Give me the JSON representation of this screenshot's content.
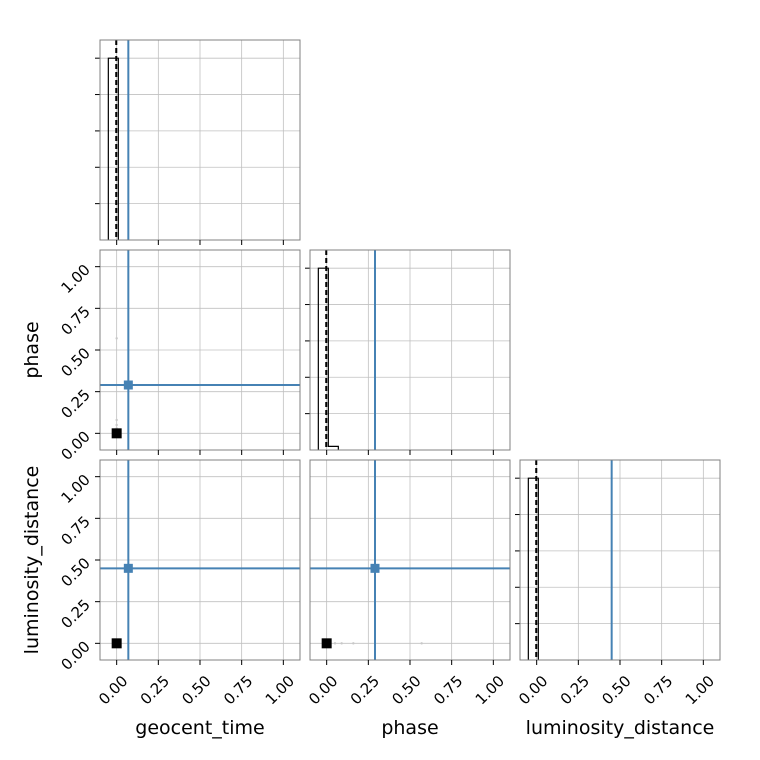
{
  "chart_data": {
    "type": "corner",
    "parameters": [
      "geocent_time",
      "phase",
      "luminosity_distance"
    ],
    "xlabels": [
      "geocent_time",
      "phase",
      "luminosity_distance"
    ],
    "ylabels": [
      "",
      "phase",
      "luminosity_distance"
    ],
    "xlim": [
      -0.1,
      1.1
    ],
    "ylim": [
      -0.1,
      1.1
    ],
    "ticks": [
      0.0,
      0.25,
      0.5,
      0.75,
      1.0
    ],
    "tick_labels": [
      "0.00",
      "0.25",
      "0.50",
      "0.75",
      "1.00"
    ],
    "grid": true,
    "truths": [
      0.07,
      0.29,
      0.45
    ],
    "colors": {
      "truth": "#4682b4",
      "hist": "#000000",
      "quantile": "#000000",
      "grid": "#c0c0c0",
      "frame": "#808080",
      "sample": "#000000"
    },
    "histograms": [
      {
        "param": "geocent_time",
        "edges": [
          -0.05,
          0.01
        ],
        "counts": [
          1.0
        ],
        "quantiles": [
          -0.005,
          0.0
        ]
      },
      {
        "param": "phase",
        "edges": [
          -0.05,
          0.01,
          0.07
        ],
        "counts": [
          1.0,
          0.02
        ],
        "quantiles": [
          -0.005,
          0.0
        ]
      },
      {
        "param": "luminosity_distance",
        "edges": [
          -0.05,
          0.01
        ],
        "counts": [
          1.0
        ],
        "quantiles": [
          -0.005,
          0.0
        ]
      }
    ],
    "scatter": [
      {
        "x": "geocent_time",
        "y": "phase",
        "points": [
          [
            0.0,
            0.57
          ],
          [
            0.0,
            0.08
          ],
          [
            0.0,
            0.05
          ],
          [
            0.0,
            0.03
          ]
        ],
        "core": [
          0.0,
          0.0
        ]
      },
      {
        "x": "geocent_time",
        "y": "luminosity_distance",
        "points": [
          [
            0.0,
            0.01
          ]
        ],
        "core": [
          0.0,
          0.0
        ]
      },
      {
        "x": "phase",
        "y": "luminosity_distance",
        "points": [
          [
            0.05,
            0.0
          ],
          [
            0.09,
            0.0
          ],
          [
            0.16,
            0.0
          ],
          [
            0.57,
            0.0
          ]
        ],
        "core": [
          0.0,
          0.0
        ]
      }
    ]
  }
}
